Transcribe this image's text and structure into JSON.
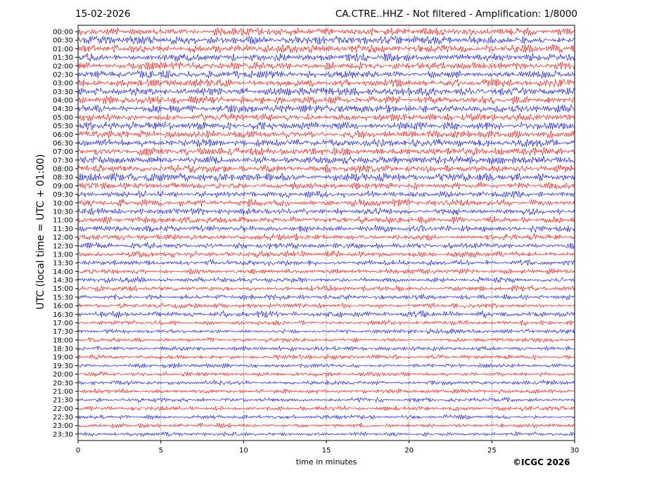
{
  "header": {
    "date": "15-02-2026",
    "title": "CA.CTRE..HHZ - Not filtered - Amplification: 1/8000"
  },
  "chart_data": {
    "type": "line",
    "title": "CA.CTRE..HHZ - Not filtered - Amplification: 1/8000",
    "xlabel": "time in minutes",
    "ylabel": "UTC (local time = UTC + 01:00)",
    "xlim": [
      0,
      30
    ],
    "xticks": [
      0,
      5,
      10,
      15,
      20,
      25,
      30
    ],
    "grid": "vertical dotted lines at x ticks",
    "trace_colors": [
      "#ff0000",
      "#0000ff"
    ],
    "rows": [
      "00:00",
      "00:30",
      "01:00",
      "01:30",
      "02:00",
      "02:30",
      "03:00",
      "03:30",
      "04:00",
      "04:30",
      "05:00",
      "05:30",
      "06:00",
      "06:30",
      "07:00",
      "07:30",
      "08:00",
      "08:30",
      "09:00",
      "09:30",
      "10:00",
      "10:30",
      "11:00",
      "11:30",
      "12:00",
      "12:30",
      "13:00",
      "13:30",
      "14:00",
      "14:30",
      "15:00",
      "15:30",
      "16:00",
      "16:30",
      "17:00",
      "17:30",
      "18:00",
      "18:30",
      "19:00",
      "19:30",
      "20:00",
      "20:30",
      "21:00",
      "21:30",
      "22:00",
      "22:30",
      "23:00",
      "23:30"
    ],
    "amplitude": [
      4.2,
      4.2,
      4.4,
      4.2,
      4.0,
      4.0,
      4.4,
      4.4,
      4.0,
      4.4,
      4.2,
      4.2,
      4.0,
      4.0,
      4.4,
      4.2,
      3.8,
      4.6,
      3.5,
      3.3,
      3.5,
      3.3,
      3.6,
      3.4,
      3.0,
      3.0,
      3.0,
      2.8,
      2.6,
      2.6,
      2.6,
      2.5,
      2.4,
      3.2,
      2.3,
      2.2,
      2.2,
      2.2,
      2.2,
      2.2,
      2.2,
      2.2,
      2.2,
      2.2,
      2.2,
      2.2,
      2.2,
      2.2
    ]
  },
  "footer": {
    "credit": "©ICGC 2026"
  }
}
